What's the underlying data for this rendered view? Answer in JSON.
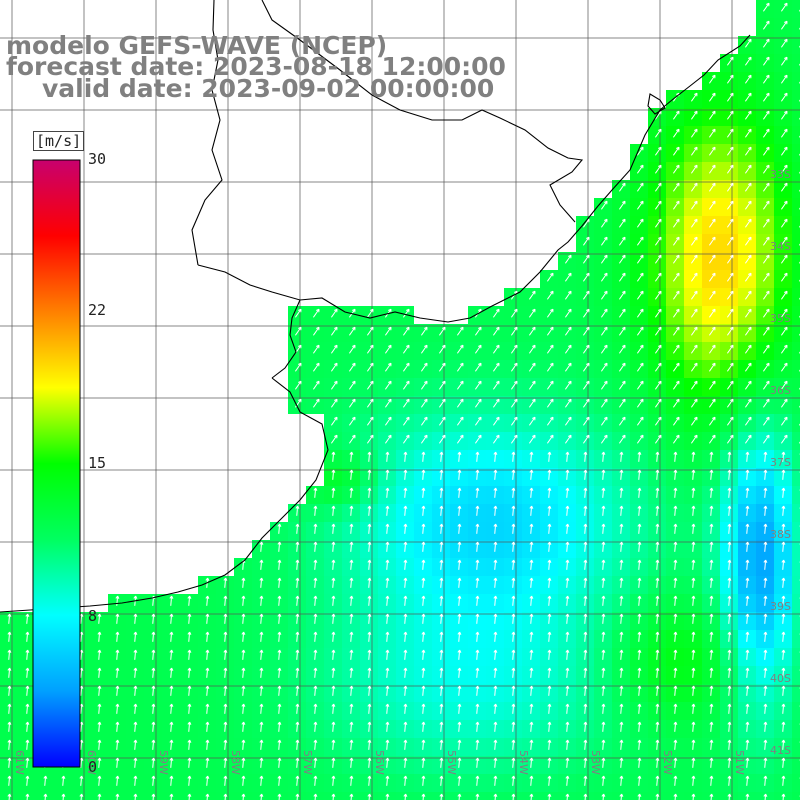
{
  "header": {
    "model": "modelo GEFS-WAVE (NCEP)",
    "forecast": "forecast date: 2023-08-18 12:00:00",
    "valid": "valid date: 2023-09-02 00:00:00"
  },
  "colorbar": {
    "unit": "[m/s]",
    "ticks": [
      "30",
      "22",
      "15",
      "8",
      "0"
    ],
    "tick_values": [
      30,
      22,
      15,
      8,
      0
    ],
    "range": [
      0,
      30
    ],
    "colors": [
      "#0000ff",
      "#00a0ff",
      "#00ffff",
      "#00ff60",
      "#00ff00",
      "#ffff00",
      "#ff8000",
      "#ff0000",
      "#c8006e"
    ]
  },
  "map": {
    "field": "wind speed",
    "background": "#ffffff",
    "grid_color": "#555555",
    "coast_color": "#000000",
    "arrow_color": "#ffffff",
    "lon_labels": [
      "61W",
      "60W",
      "59W",
      "58W",
      "57W",
      "56W",
      "55W",
      "54W",
      "53W",
      "52W",
      "51W"
    ],
    "lat_labels": [
      "33S",
      "34S",
      "35S",
      "36S",
      "37S",
      "38S",
      "39S",
      "40S",
      "41S"
    ]
  }
}
